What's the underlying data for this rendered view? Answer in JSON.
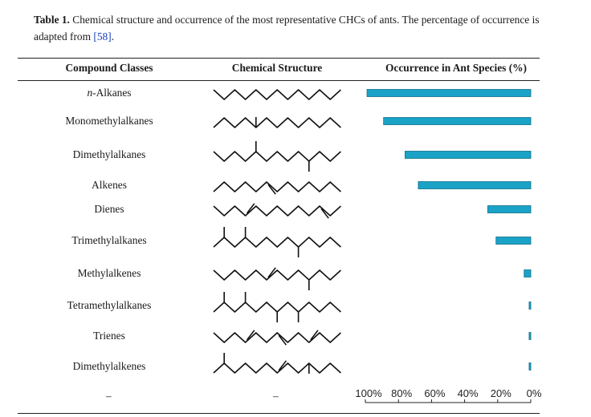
{
  "caption": {
    "label": "Table 1.",
    "text_before": "Chemical structure and occurrence of the most representative CHCs of ants. The percentage of occurrence is adapted from ",
    "ref": "[58]",
    "text_after": "."
  },
  "table": {
    "headers": [
      "Compound Classes",
      "Chemical Structure",
      "Occurrence in Ant Species (%)"
    ],
    "rows": [
      {
        "italic_prefix": "n",
        "name": "-Alkanes"
      },
      {
        "italic_prefix": "",
        "name": "Monomethylalkanes"
      },
      {
        "italic_prefix": "",
        "name": "Dimethylalkanes"
      },
      {
        "italic_prefix": "",
        "name": "Alkenes"
      },
      {
        "italic_prefix": "",
        "name": "Dienes"
      },
      {
        "italic_prefix": "",
        "name": "Trimethylalkanes"
      },
      {
        "italic_prefix": "",
        "name": "Methylalkenes"
      },
      {
        "italic_prefix": "",
        "name": "Tetramethylalkanes"
      },
      {
        "italic_prefix": "",
        "name": "Trienes"
      },
      {
        "italic_prefix": "",
        "name": "Dimethylalkenes"
      }
    ],
    "footer_dashes": [
      "–",
      "–"
    ]
  },
  "chart_data": {
    "type": "bar",
    "orientation": "horizontal",
    "x_axis_reversed": true,
    "categories": [
      "n-Alkanes",
      "Monomethylalkanes",
      "Dimethylalkanes",
      "Alkenes",
      "Dienes",
      "Trimethylalkanes",
      "Methylalkenes",
      "Tetramethylalkanes",
      "Trienes",
      "Dimethylalkenes"
    ],
    "values": [
      99,
      89,
      76,
      68,
      26,
      21,
      4,
      1,
      1,
      1
    ],
    "xlim": [
      0,
      100
    ],
    "xticks": [
      "100%",
      "80%",
      "60%",
      "40%",
      "20%",
      "0%"
    ],
    "bar_color": "#1aa3c7",
    "bar_edge_color": "#0d6e88"
  }
}
